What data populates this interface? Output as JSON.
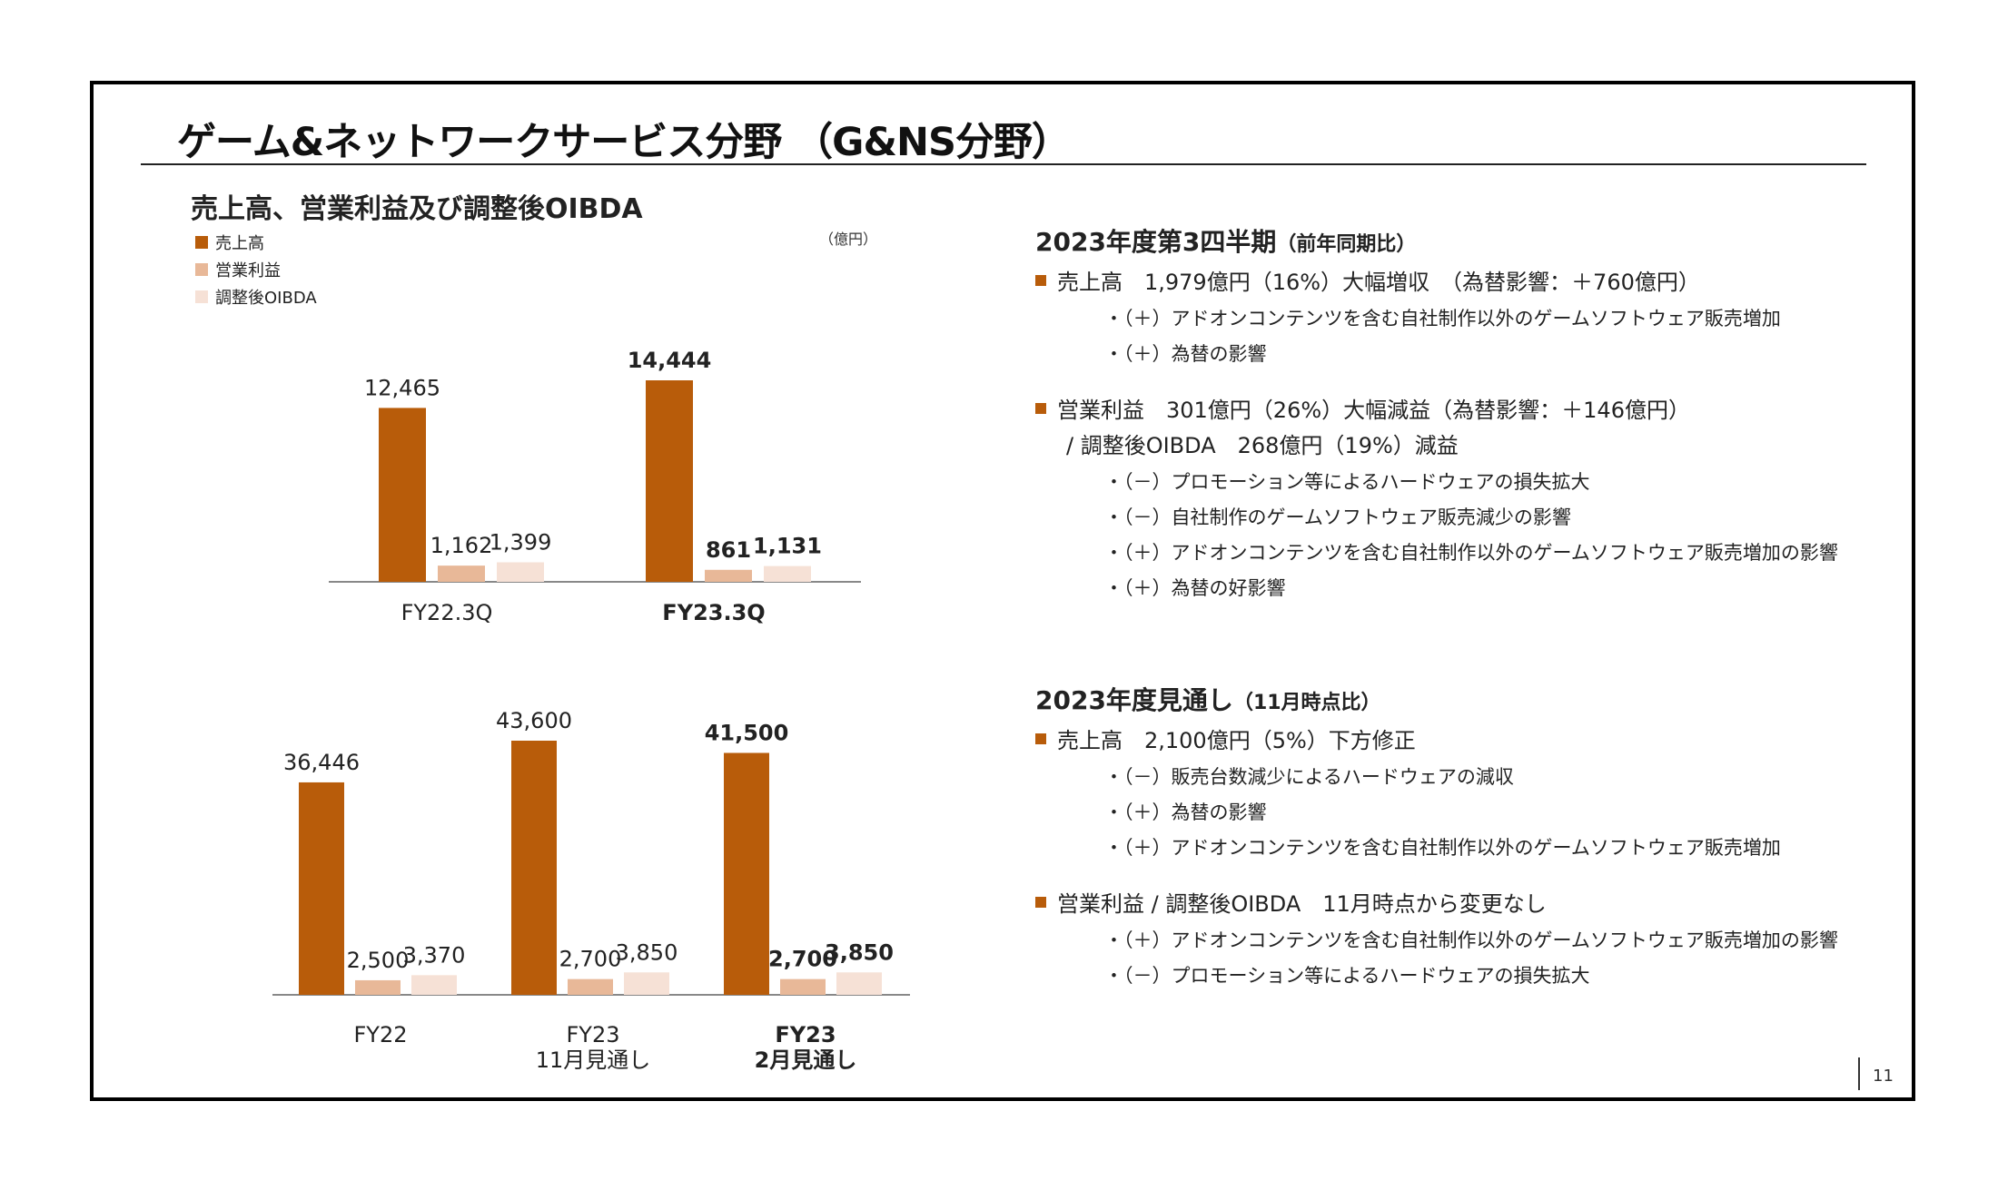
{
  "page": {
    "title": "ゲーム&ネットワークサービス分野 （G&NS分野）",
    "page_number": "11"
  },
  "chart_section": {
    "heading": "売上高、営業利益及び調整後OIBDA",
    "unit": "（億円）",
    "legend": [
      "売上高",
      "営業利益",
      "調整後OIBDA"
    ]
  },
  "colors": {
    "sales": "#b85c0a",
    "op_income": "#e8b898",
    "oibda": "#f6e1d6",
    "accent": "#b85c0a"
  },
  "chart_data": [
    {
      "type": "bar",
      "title": "",
      "categories": [
        "FY22.3Q",
        "FY23.3Q"
      ],
      "bold_categories": [
        false,
        true
      ],
      "series": [
        {
          "name": "売上高",
          "values": [
            12465,
            14444
          ],
          "labels": [
            "12,465",
            "14,444"
          ]
        },
        {
          "name": "営業利益",
          "values": [
            1162,
            861
          ],
          "labels": [
            "1,162",
            "861"
          ]
        },
        {
          "name": "調整後OIBDA",
          "values": [
            1399,
            1131
          ],
          "labels": [
            "1,399",
            "1,131"
          ]
        }
      ],
      "ylim": [
        0,
        14444
      ]
    },
    {
      "type": "bar",
      "title": "",
      "categories": [
        "FY22",
        "FY23\n11月見通し",
        "FY23\n2月見通し"
      ],
      "bold_categories": [
        false,
        false,
        true
      ],
      "series": [
        {
          "name": "売上高",
          "values": [
            36446,
            43600,
            41500
          ],
          "labels": [
            "36,446",
            "43,600",
            "41,500"
          ]
        },
        {
          "name": "営業利益",
          "values": [
            2500,
            2700,
            2700
          ],
          "labels": [
            "2,500",
            "2,700",
            "2,700"
          ]
        },
        {
          "name": "調整後OIBDA",
          "values": [
            3370,
            3850,
            3850
          ],
          "labels": [
            "3,370",
            "3,850",
            "3,850"
          ]
        }
      ],
      "ylim": [
        0,
        43600
      ]
    }
  ],
  "q3": {
    "title": "2023年度第3四半期",
    "title_sub": "（前年同期比）",
    "sales_line": "売上高　1,979億円（16%）大幅増収　（為替影響：＋760億円）",
    "sales_bullets": [
      "・（＋）アドオンコンテンツを含む自社制作以外のゲームソフトウェア販売増加",
      "・（＋）為替の影響"
    ],
    "op_line": "営業利益　301億円（26%）大幅減益（為替影響：＋146億円）",
    "oibda_line": "/ 調整後OIBDA　268億円（19%）減益",
    "op_bullets": [
      "・（－）プロモーション等によるハードウェアの損失拡大",
      "・（－）自社制作のゲームソフトウェア販売減少の影響",
      "・（＋）アドオンコンテンツを含む自社制作以外のゲームソフトウェア販売増加の影響",
      "・（＋）為替の好影響"
    ]
  },
  "forecast": {
    "title": "2023年度見通し",
    "title_sub": "（11月時点比）",
    "sales_line": "売上高　2,100億円（5%）下方修正",
    "sales_bullets": [
      "・（－）販売台数減少によるハードウェアの減収",
      "・（＋）為替の影響",
      "・（＋）アドオンコンテンツを含む自社制作以外のゲームソフトウェア販売増加"
    ],
    "op_line": "営業利益 / 調整後OIBDA　11月時点から変更なし",
    "op_bullets": [
      "・（＋）アドオンコンテンツを含む自社制作以外のゲームソフトウェア販売増加の影響",
      "・（－）プロモーション等によるハードウェアの損失拡大"
    ]
  }
}
